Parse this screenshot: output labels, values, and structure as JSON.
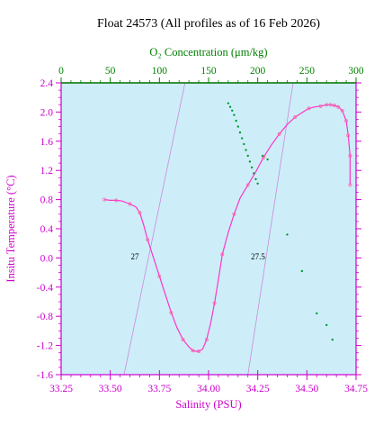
{
  "colors": {
    "background": "#ffffff",
    "plot_bg": "#cdeef8",
    "salinity_axis": "#cc00cc",
    "oxygen_axis": "#008000",
    "temp_profile": "#ff33cc",
    "temp_markers": "#ff6699",
    "oxygen_profile": "#009933",
    "density_contour": "#cc88dd",
    "title_color": "#000000"
  },
  "chart_data": {
    "type": "scatter",
    "title": "Float 24573  (All profiles as of 16 Feb 2026)",
    "xlabel": "Salinity (PSU)",
    "x2label": "O₂ Concentration (μm/kg)",
    "ylabel": "Insitu Temperature (°C)",
    "xlim": [
      33.25,
      34.75
    ],
    "x2lim": [
      0,
      300
    ],
    "ylim": [
      -1.6,
      2.4
    ],
    "xticks": [
      "33.25",
      "33.50",
      "33.75",
      "34.00",
      "34.25",
      "34.50",
      "34.75"
    ],
    "x2ticks": [
      "0",
      "50",
      "100",
      "150",
      "200",
      "250",
      "300"
    ],
    "yticks": [
      "-1.6",
      "-1.2",
      "-0.8",
      "-0.4",
      "0.0",
      "0.4",
      "0.8",
      "1.2",
      "1.6",
      "2.0",
      "2.4"
    ],
    "grid": false,
    "legend": "none",
    "series": [
      {
        "axis": "salinity",
        "x": [
          33.47,
          33.5,
          33.53,
          33.56,
          33.6,
          33.63,
          33.65,
          33.67,
          33.69,
          33.72,
          33.75,
          33.78,
          33.81,
          33.84,
          33.87,
          33.9,
          33.92,
          33.94,
          33.95,
          33.97,
          33.99,
          34.01,
          34.03,
          34.05,
          34.07,
          34.1,
          34.13,
          34.16,
          34.2,
          34.24,
          34.28,
          34.32,
          34.36,
          34.4,
          34.44,
          34.48,
          34.51,
          34.54,
          34.57,
          34.6,
          34.62,
          34.64,
          34.66,
          34.68,
          34.7,
          34.71,
          34.72,
          34.72
        ],
        "y": [
          0.8,
          0.79,
          0.79,
          0.78,
          0.74,
          0.7,
          0.62,
          0.45,
          0.25,
          0.0,
          -0.25,
          -0.5,
          -0.75,
          -0.96,
          -1.12,
          -1.22,
          -1.27,
          -1.28,
          -1.28,
          -1.25,
          -1.12,
          -0.9,
          -0.62,
          -0.3,
          0.05,
          0.35,
          0.6,
          0.82,
          1.0,
          1.18,
          1.38,
          1.55,
          1.7,
          1.83,
          1.93,
          2.0,
          2.05,
          2.07,
          2.08,
          2.1,
          2.1,
          2.09,
          2.07,
          2.02,
          1.88,
          1.68,
          1.4,
          1.0
        ]
      },
      {
        "axis": "oxygen",
        "x": [
          170,
          172,
          174,
          176,
          178,
          180,
          182,
          184,
          186,
          188,
          190,
          192,
          194,
          196,
          198,
          200,
          205,
          210,
          230,
          245,
          260,
          270,
          276
        ],
        "y": [
          2.12,
          2.07,
          2.02,
          1.96,
          1.88,
          1.8,
          1.72,
          1.64,
          1.56,
          1.48,
          1.4,
          1.32,
          1.24,
          1.16,
          1.08,
          1.02,
          1.4,
          1.35,
          0.32,
          -0.18,
          -0.76,
          -0.92,
          -1.12
        ]
      }
    ],
    "density_contours": [
      {
        "label": "27",
        "points": [
          [
            33.57,
            -1.6
          ],
          [
            33.88,
            2.4
          ]
        ]
      },
      {
        "label": "27.5",
        "points": [
          [
            34.2,
            -1.6
          ],
          [
            34.43,
            2.4
          ]
        ]
      }
    ]
  }
}
